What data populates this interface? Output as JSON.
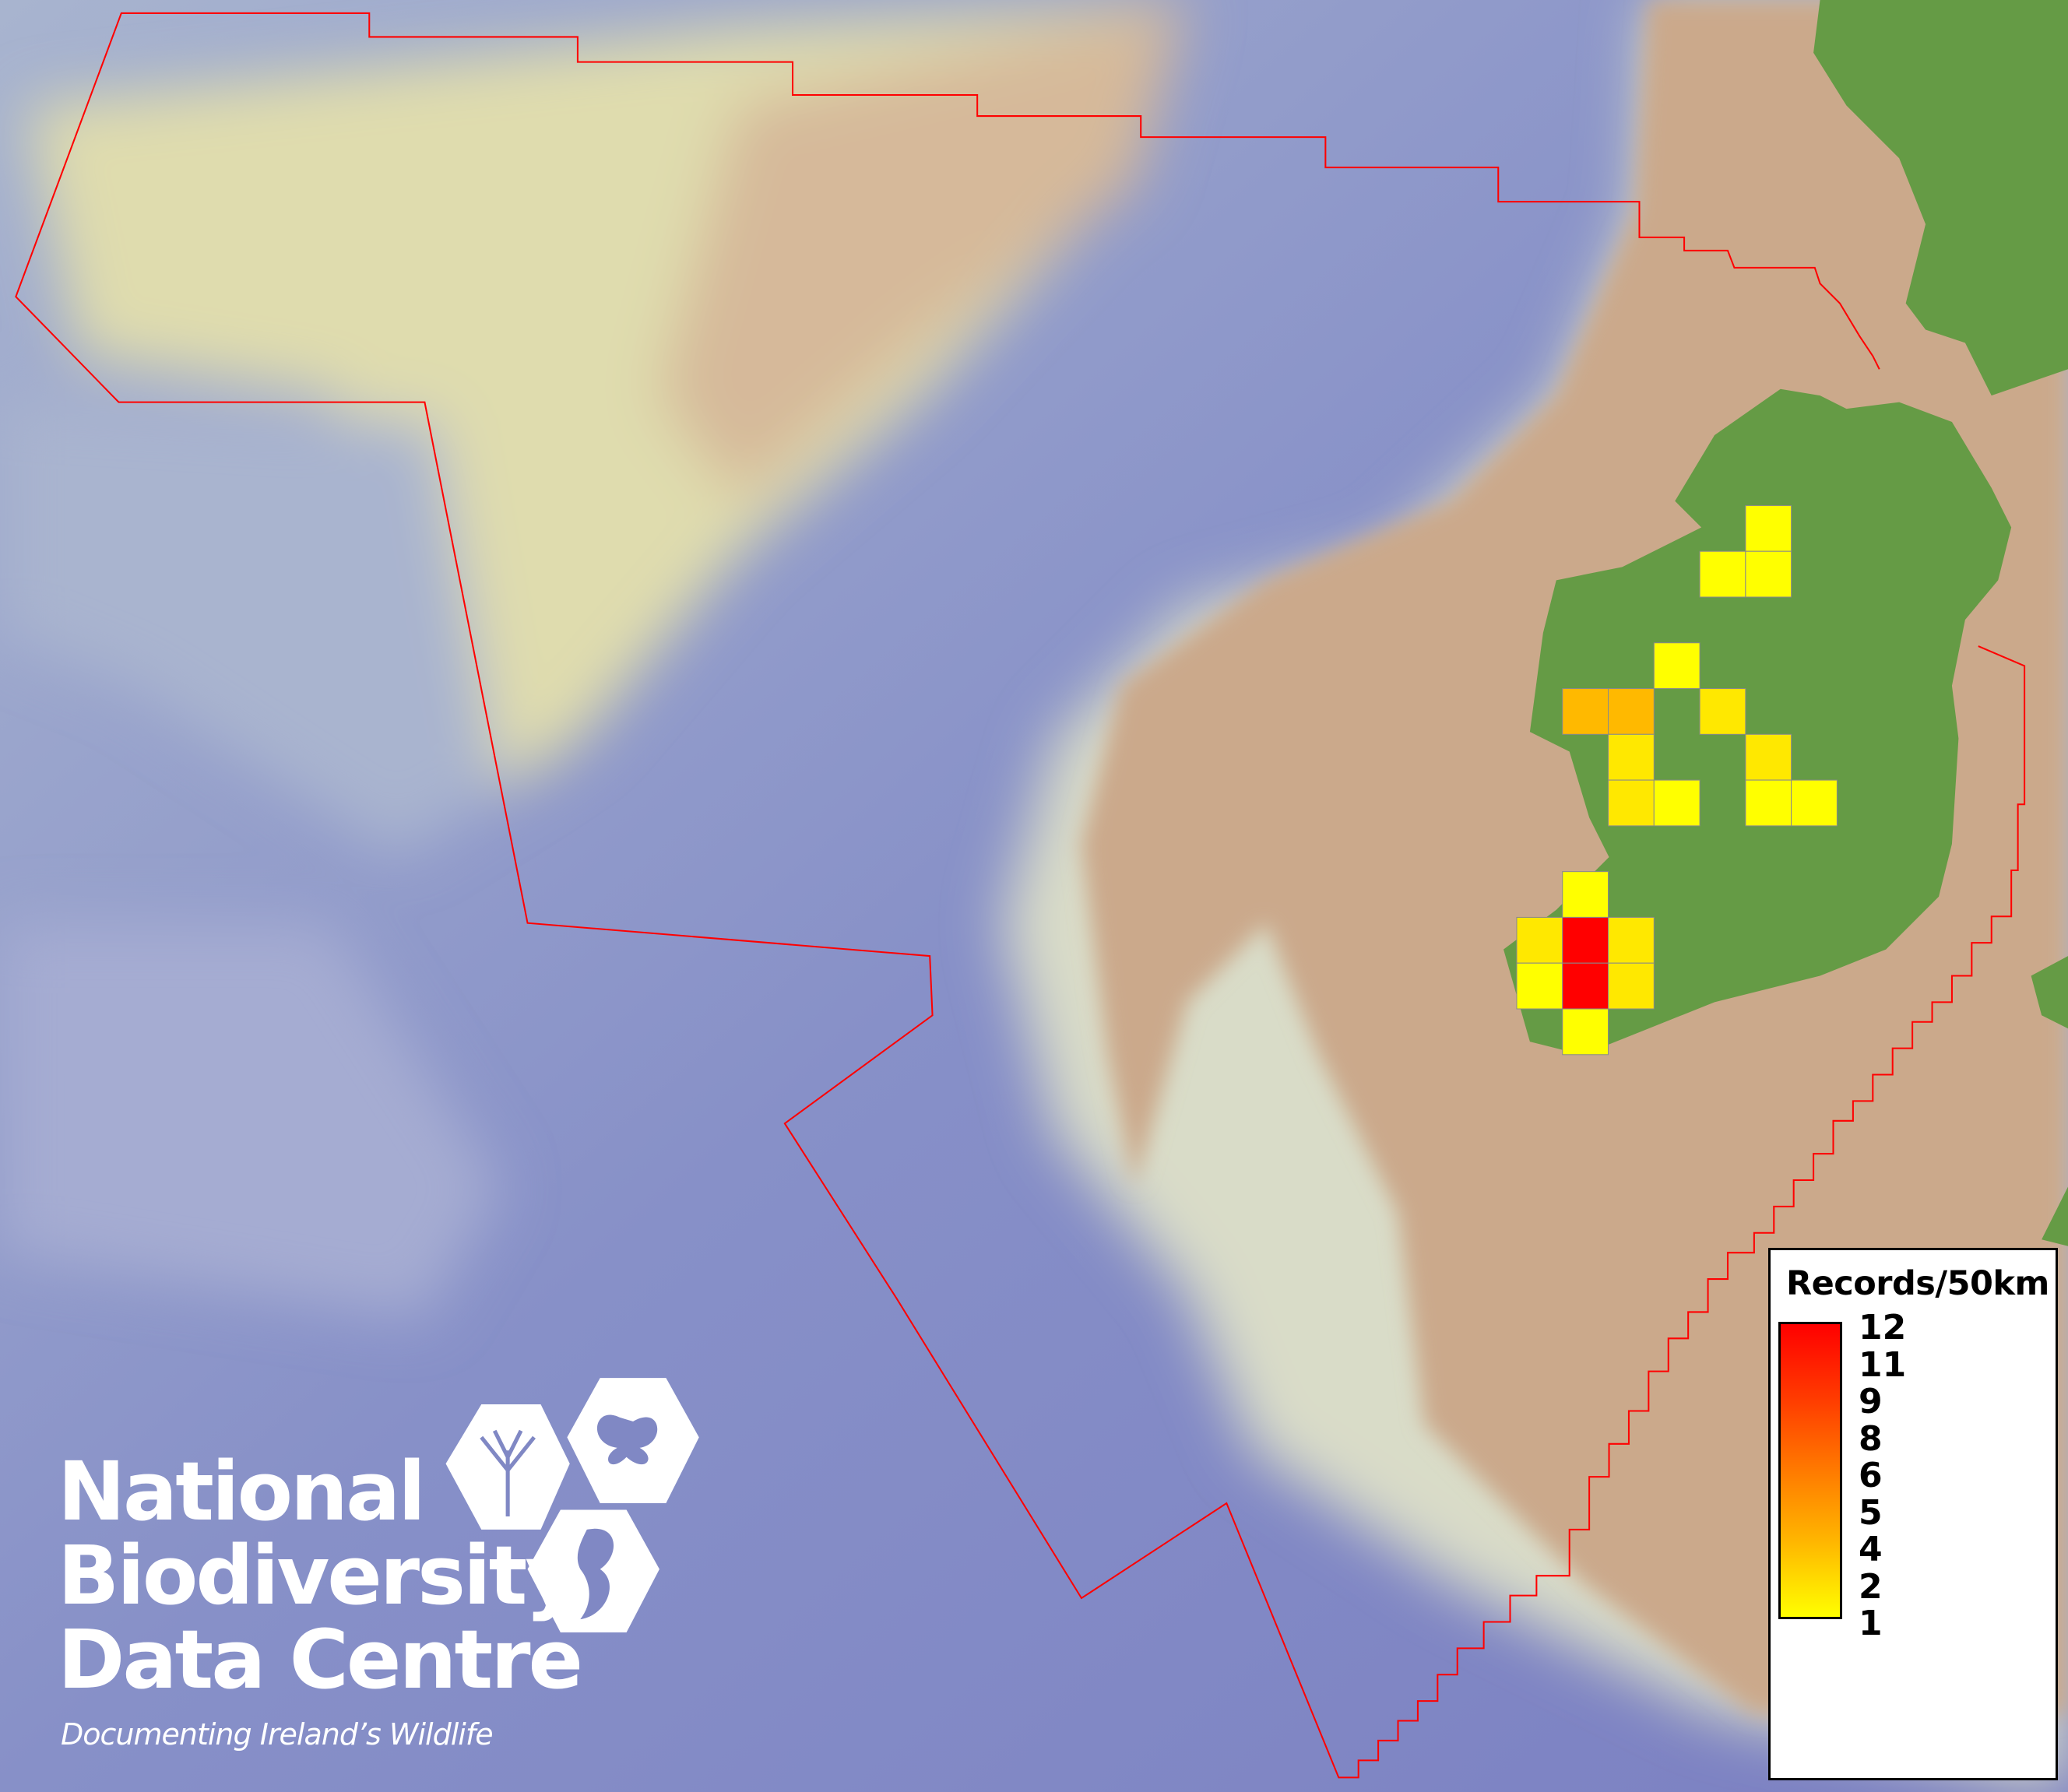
{
  "map": {
    "legend": {
      "title": "Records/50km",
      "ticks": [
        "12",
        "11",
        "9",
        "8",
        "6",
        "5",
        "4",
        "2",
        "1"
      ],
      "color_min": "#ffff00",
      "color_max": "#ff0000",
      "range": [
        1,
        12
      ]
    },
    "boundary_color": "#ff0000",
    "land_color": "#659b45",
    "sea_shallow_color": "#c9a98a",
    "sea_deep_color": "#8088c4",
    "grid_cells": [
      {
        "col": 5,
        "row": 0,
        "value": 1
      },
      {
        "col": 4,
        "row": 1,
        "value": 1
      },
      {
        "col": 5,
        "row": 1,
        "value": 1
      },
      {
        "col": 3,
        "row": 3,
        "value": 1
      },
      {
        "col": 1,
        "row": 4,
        "value": 4
      },
      {
        "col": 2,
        "row": 4,
        "value": 4
      },
      {
        "col": 4,
        "row": 4,
        "value": 2
      },
      {
        "col": 2,
        "row": 5,
        "value": 2
      },
      {
        "col": 5,
        "row": 5,
        "value": 2
      },
      {
        "col": 2,
        "row": 6,
        "value": 2
      },
      {
        "col": 3,
        "row": 6,
        "value": 1
      },
      {
        "col": 5,
        "row": 6,
        "value": 1
      },
      {
        "col": 6,
        "row": 6,
        "value": 1
      },
      {
        "col": 1,
        "row": 8,
        "value": 1
      },
      {
        "col": 0,
        "row": 9,
        "value": 2
      },
      {
        "col": 1,
        "row": 9,
        "value": 12
      },
      {
        "col": 2,
        "row": 9,
        "value": 2
      },
      {
        "col": 0,
        "row": 10,
        "value": 1
      },
      {
        "col": 1,
        "row": 10,
        "value": 12
      },
      {
        "col": 2,
        "row": 10,
        "value": 2
      },
      {
        "col": 1,
        "row": 11,
        "value": 1
      }
    ]
  },
  "logo": {
    "line1": "National",
    "line2": "Biodiversity",
    "line3": "Data Centre",
    "tagline": "Documenting Ireland’s Wildlife",
    "icons": [
      "tree-icon",
      "butterfly-icon",
      "seahorse-icon"
    ]
  }
}
